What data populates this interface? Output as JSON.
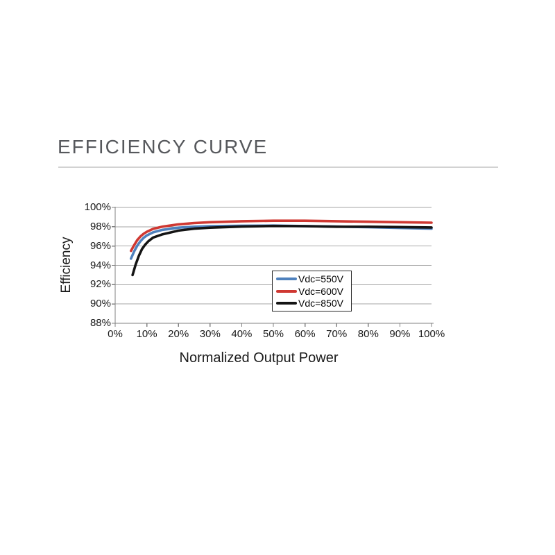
{
  "header": {
    "title": "EFFICIENCY CURVE",
    "title_color": "#56585c",
    "divider_color": "#d2d2d2"
  },
  "chart_data": {
    "type": "line",
    "title": "EFFICIENCY CURVE",
    "xlabel": "Normalized Output Power",
    "ylabel": "Efficiency",
    "xlim": [
      0,
      100
    ],
    "ylim": [
      88,
      100
    ],
    "x_tick_labels": [
      "0%",
      "10%",
      "20%",
      "30%",
      "40%",
      "50%",
      "60%",
      "70%",
      "80%",
      "90%",
      "100%"
    ],
    "y_tick_labels": [
      "88%",
      "90%",
      "92%",
      "94%",
      "96%",
      "98%",
      "100%"
    ],
    "grid": "horizontal",
    "grid_color": "#a6a6a6",
    "axis_color": "#808080",
    "legend_position": "inside-center",
    "series": [
      {
        "name": "Vdc=550V",
        "color": "#4f81bd",
        "points": [
          [
            5,
            94.7
          ],
          [
            6,
            95.45
          ],
          [
            7,
            96.05
          ],
          [
            8,
            96.5
          ],
          [
            9,
            96.85
          ],
          [
            10,
            97.1
          ],
          [
            12,
            97.42
          ],
          [
            15,
            97.68
          ],
          [
            20,
            97.9
          ],
          [
            25,
            98.0
          ],
          [
            30,
            98.05
          ],
          [
            40,
            98.1
          ],
          [
            50,
            98.12
          ],
          [
            60,
            98.07
          ],
          [
            70,
            98.02
          ],
          [
            80,
            97.95
          ],
          [
            90,
            97.87
          ],
          [
            100,
            97.8
          ]
        ]
      },
      {
        "name": "Vdc=600V",
        "color": "#cf3832",
        "points": [
          [
            5,
            95.5
          ],
          [
            6,
            96.1
          ],
          [
            7,
            96.62
          ],
          [
            8,
            97.0
          ],
          [
            9,
            97.27
          ],
          [
            10,
            97.48
          ],
          [
            12,
            97.78
          ],
          [
            15,
            98.02
          ],
          [
            20,
            98.25
          ],
          [
            25,
            98.38
          ],
          [
            30,
            98.47
          ],
          [
            40,
            98.57
          ],
          [
            50,
            98.62
          ],
          [
            60,
            98.62
          ],
          [
            70,
            98.57
          ],
          [
            80,
            98.52
          ],
          [
            90,
            98.47
          ],
          [
            100,
            98.42
          ]
        ]
      },
      {
        "name": "Vdc=850V",
        "color": "#141414",
        "points": [
          [
            5.5,
            93.0
          ],
          [
            6.5,
            94.1
          ],
          [
            7.5,
            95.0
          ],
          [
            8.5,
            95.7
          ],
          [
            9.5,
            96.15
          ],
          [
            10.5,
            96.5
          ],
          [
            12,
            96.88
          ],
          [
            15,
            97.22
          ],
          [
            20,
            97.6
          ],
          [
            25,
            97.8
          ],
          [
            30,
            97.9
          ],
          [
            40,
            98.02
          ],
          [
            50,
            98.08
          ],
          [
            60,
            98.06
          ],
          [
            70,
            98.0
          ],
          [
            80,
            98.0
          ],
          [
            90,
            97.97
          ],
          [
            100,
            97.92
          ]
        ]
      }
    ]
  }
}
